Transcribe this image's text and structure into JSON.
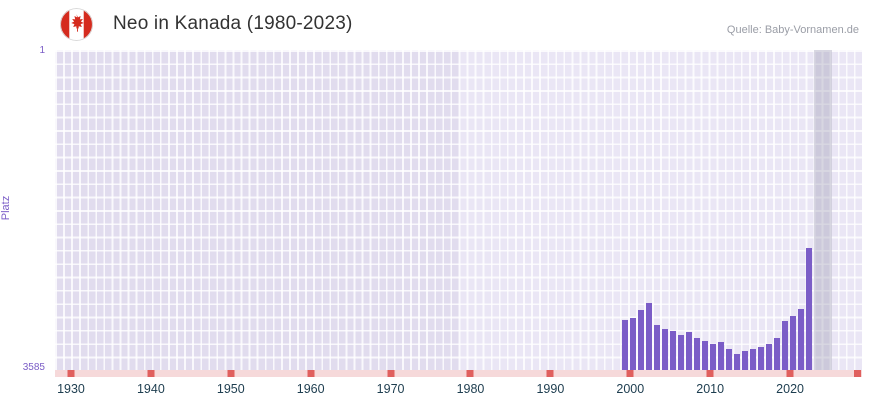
{
  "header": {
    "title": "Neo in Kanada (1980-2023)",
    "source": "Quelle: Baby-Vornamen.de",
    "flag": "canada-flag"
  },
  "y_axis": {
    "label": "Platz",
    "top_tick": "1",
    "bottom_tick": "3585"
  },
  "x_axis": {
    "ticks": [
      "1930",
      "1940",
      "1950",
      "1960",
      "1970",
      "1980",
      "1990",
      "2000",
      "2010",
      "2020"
    ]
  },
  "chart_data": {
    "type": "bar",
    "title": "Neo in Kanada (1980-2023)",
    "xlabel": "",
    "ylabel": "Platz",
    "x_domain": [
      1928,
      2029
    ],
    "y_domain_rank": [
      1,
      3585
    ],
    "y_inverted": true,
    "grid": true,
    "years": [
      1999,
      2000,
      2001,
      2002,
      2003,
      2004,
      2005,
      2006,
      2007,
      2008,
      2009,
      2010,
      2011,
      2012,
      2013,
      2014,
      2015,
      2016,
      2017,
      2018,
      2019,
      2020,
      2021,
      2022
    ],
    "values": [
      3025,
      3000,
      2915,
      2835,
      3080,
      3125,
      3150,
      3195,
      3160,
      3225,
      3260,
      3295,
      3270,
      3350,
      3405,
      3370,
      3350,
      3325,
      3295,
      3225,
      3035,
      2980,
      2900,
      2220
    ],
    "decade_ticks": [
      1930,
      1940,
      1950,
      1960,
      1970,
      1980,
      1990,
      2000,
      2010,
      2020
    ],
    "highlight_year": 2023
  },
  "colors": {
    "bar": "#7b5dc7",
    "axis_purple": "#7b5dc7",
    "x_label": "#1d3d4f",
    "strip_pink": "#f6d9da",
    "tick_red": "#e0605e",
    "plot_bg_early": "#e1dcee",
    "plot_bg_late": "#eae6f5",
    "flag_red": "#d52b1e",
    "title_text": "#333333",
    "source_text": "#9a9da6"
  }
}
